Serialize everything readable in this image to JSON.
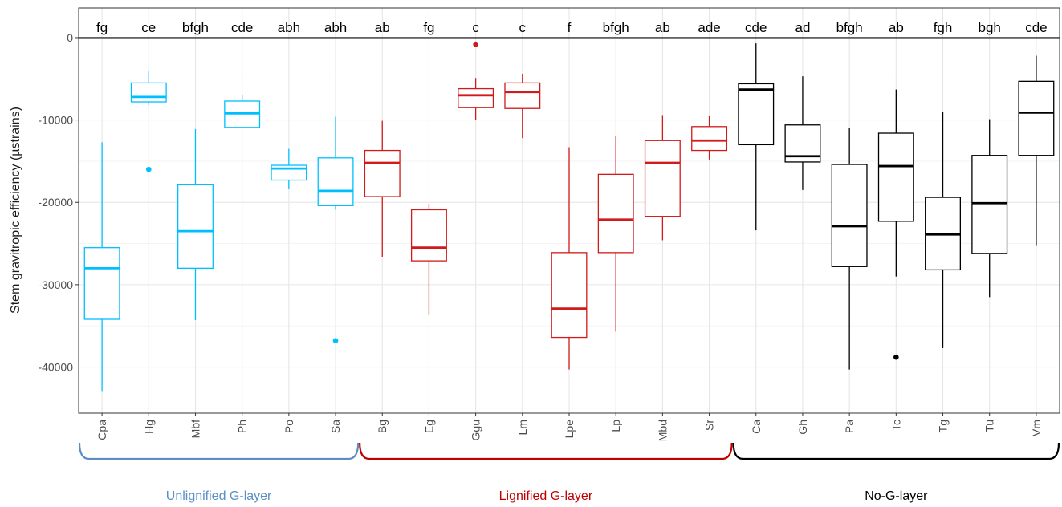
{
  "chart_data": {
    "type": "box",
    "ylabel": "Stem gravitropic efficiency (µstrains)",
    "xlabel": "",
    "ylim": [
      -45600,
      3600
    ],
    "yticks": [
      0,
      -10000,
      -20000,
      -30000,
      -40000
    ],
    "ytick_labels": [
      "0",
      "-10000",
      "-20000",
      "-30000",
      "-40000"
    ],
    "grid": true,
    "reference_line": 0,
    "groups": [
      {
        "name": "Unlignified G-layer",
        "color": "#00bfff",
        "label_color": "#5b8ec4",
        "bracket_color": "#5b8ec4",
        "start": 0,
        "end": 5
      },
      {
        "name": "Lignified G-layer",
        "color": "#d11a1a",
        "label_color": "#c00000",
        "bracket_color": "#c00000",
        "start": 6,
        "end": 13
      },
      {
        "name": "No-G-layer",
        "color": "#000000",
        "label_color": "#000000",
        "bracket_color": "#000000",
        "start": 14,
        "end": 20
      }
    ],
    "boxes": [
      {
        "name": "Cpa",
        "group": 0,
        "letters": "fg",
        "whisker_low": -43000,
        "q1": -34200,
        "median": -28000,
        "q3": -25500,
        "whisker_high": -12700,
        "outliers": []
      },
      {
        "name": "Hg",
        "group": 0,
        "letters": "ce",
        "whisker_low": -8200,
        "q1": -7800,
        "median": -7200,
        "q3": -5500,
        "whisker_high": -4000,
        "outliers": [
          -16000
        ]
      },
      {
        "name": "Mbf",
        "group": 0,
        "letters": "bfgh",
        "whisker_low": -34300,
        "q1": -28000,
        "median": -23500,
        "q3": -17800,
        "whisker_high": -11100,
        "outliers": []
      },
      {
        "name": "Ph",
        "group": 0,
        "letters": "cde",
        "whisker_low": -11000,
        "q1": -10900,
        "median": -9200,
        "q3": -7700,
        "whisker_high": -7000,
        "outliers": []
      },
      {
        "name": "Po",
        "group": 0,
        "letters": "abh",
        "whisker_low": -18400,
        "q1": -17300,
        "median": -15900,
        "q3": -15500,
        "whisker_high": -13500,
        "outliers": []
      },
      {
        "name": "Sa",
        "group": 0,
        "letters": "abh",
        "whisker_low": -20900,
        "q1": -20400,
        "median": -18600,
        "q3": -14600,
        "whisker_high": -9600,
        "outliers": [
          -36800
        ]
      },
      {
        "name": "Bg",
        "group": 1,
        "letters": "ab",
        "whisker_low": -26600,
        "q1": -19300,
        "median": -15200,
        "q3": -13700,
        "whisker_high": -10100,
        "outliers": []
      },
      {
        "name": "Eg",
        "group": 1,
        "letters": "fg",
        "whisker_low": -33700,
        "q1": -27100,
        "median": -25500,
        "q3": -20900,
        "whisker_high": -20200,
        "outliers": []
      },
      {
        "name": "Ggu",
        "group": 1,
        "letters": "c",
        "whisker_low": -10000,
        "q1": -8500,
        "median": -7000,
        "q3": -6200,
        "whisker_high": -4900,
        "outliers": [
          -800
        ]
      },
      {
        "name": "Lm",
        "group": 1,
        "letters": "c",
        "whisker_low": -12200,
        "q1": -8600,
        "median": -6600,
        "q3": -5500,
        "whisker_high": -4400,
        "outliers": []
      },
      {
        "name": "Lpe",
        "group": 1,
        "letters": "f",
        "whisker_low": -40300,
        "q1": -36400,
        "median": -32900,
        "q3": -26100,
        "whisker_high": -13300,
        "outliers": []
      },
      {
        "name": "Lp",
        "group": 1,
        "letters": "bfgh",
        "whisker_low": -35700,
        "q1": -26100,
        "median": -22100,
        "q3": -16600,
        "whisker_high": -11900,
        "outliers": []
      },
      {
        "name": "Mbd",
        "group": 1,
        "letters": "ab",
        "whisker_low": -24600,
        "q1": -21700,
        "median": -15200,
        "q3": -12500,
        "whisker_high": -9400,
        "outliers": []
      },
      {
        "name": "Sr",
        "group": 1,
        "letters": "ade",
        "whisker_low": -14800,
        "q1": -13700,
        "median": -12500,
        "q3": -10800,
        "whisker_high": -9500,
        "outliers": []
      },
      {
        "name": "Ca",
        "group": 2,
        "letters": "cde",
        "whisker_low": -23400,
        "q1": -13000,
        "median": -6300,
        "q3": -5600,
        "whisker_high": -700,
        "outliers": []
      },
      {
        "name": "Gh",
        "group": 2,
        "letters": "ad",
        "whisker_low": -18500,
        "q1": -15100,
        "median": -14400,
        "q3": -10600,
        "whisker_high": -4700,
        "outliers": []
      },
      {
        "name": "Pa",
        "group": 2,
        "letters": "bfgh",
        "whisker_low": -40300,
        "q1": -27800,
        "median": -22900,
        "q3": -15400,
        "whisker_high": -11000,
        "outliers": []
      },
      {
        "name": "Tc",
        "group": 2,
        "letters": "ab",
        "whisker_low": -29000,
        "q1": -22300,
        "median": -15600,
        "q3": -11600,
        "whisker_high": -6300,
        "outliers": [
          -38800
        ]
      },
      {
        "name": "Tg",
        "group": 2,
        "letters": "fgh",
        "whisker_low": -37700,
        "q1": -28200,
        "median": -23900,
        "q3": -19400,
        "whisker_high": -9000,
        "outliers": []
      },
      {
        "name": "Tu",
        "group": 2,
        "letters": "bgh",
        "whisker_low": -31500,
        "q1": -26200,
        "median": -20100,
        "q3": -14300,
        "whisker_high": -9900,
        "outliers": []
      },
      {
        "name": "Vm",
        "group": 2,
        "letters": "cde",
        "whisker_low": -25300,
        "q1": -14300,
        "median": -9100,
        "q3": -5300,
        "whisker_high": -2200,
        "outliers": []
      }
    ]
  }
}
